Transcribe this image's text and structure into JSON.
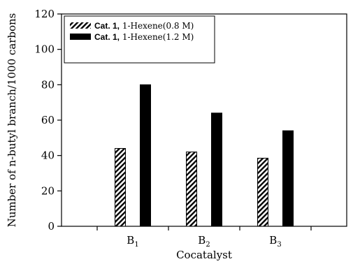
{
  "chart_data": {
    "type": "bar",
    "title": "",
    "xlabel": "Cocatalyst",
    "ylabel": "Number of n-butyl branch/1000 carbons",
    "ylim": [
      0,
      120
    ],
    "yticks": [
      0,
      20,
      40,
      60,
      80,
      100,
      120
    ],
    "categories": [
      {
        "base": "B",
        "sub": "1"
      },
      {
        "base": "B",
        "sub": "2"
      },
      {
        "base": "B",
        "sub": "3"
      }
    ],
    "series": [
      {
        "name_bold": "Cat. 1,",
        "name_rest": " 1-Hexene(0.8 M)",
        "pattern": "hatched",
        "values": [
          44,
          42,
          38.5
        ]
      },
      {
        "name_bold": "Cat. 1,",
        "name_rest": " 1-Hexene(1.2 M)",
        "pattern": "solid",
        "values": [
          80,
          64,
          54
        ]
      }
    ],
    "legend_position": "top-left",
    "grid": false,
    "colors": {
      "solid": "#000000",
      "hatch": "#000000",
      "background": "#ffffff"
    }
  }
}
